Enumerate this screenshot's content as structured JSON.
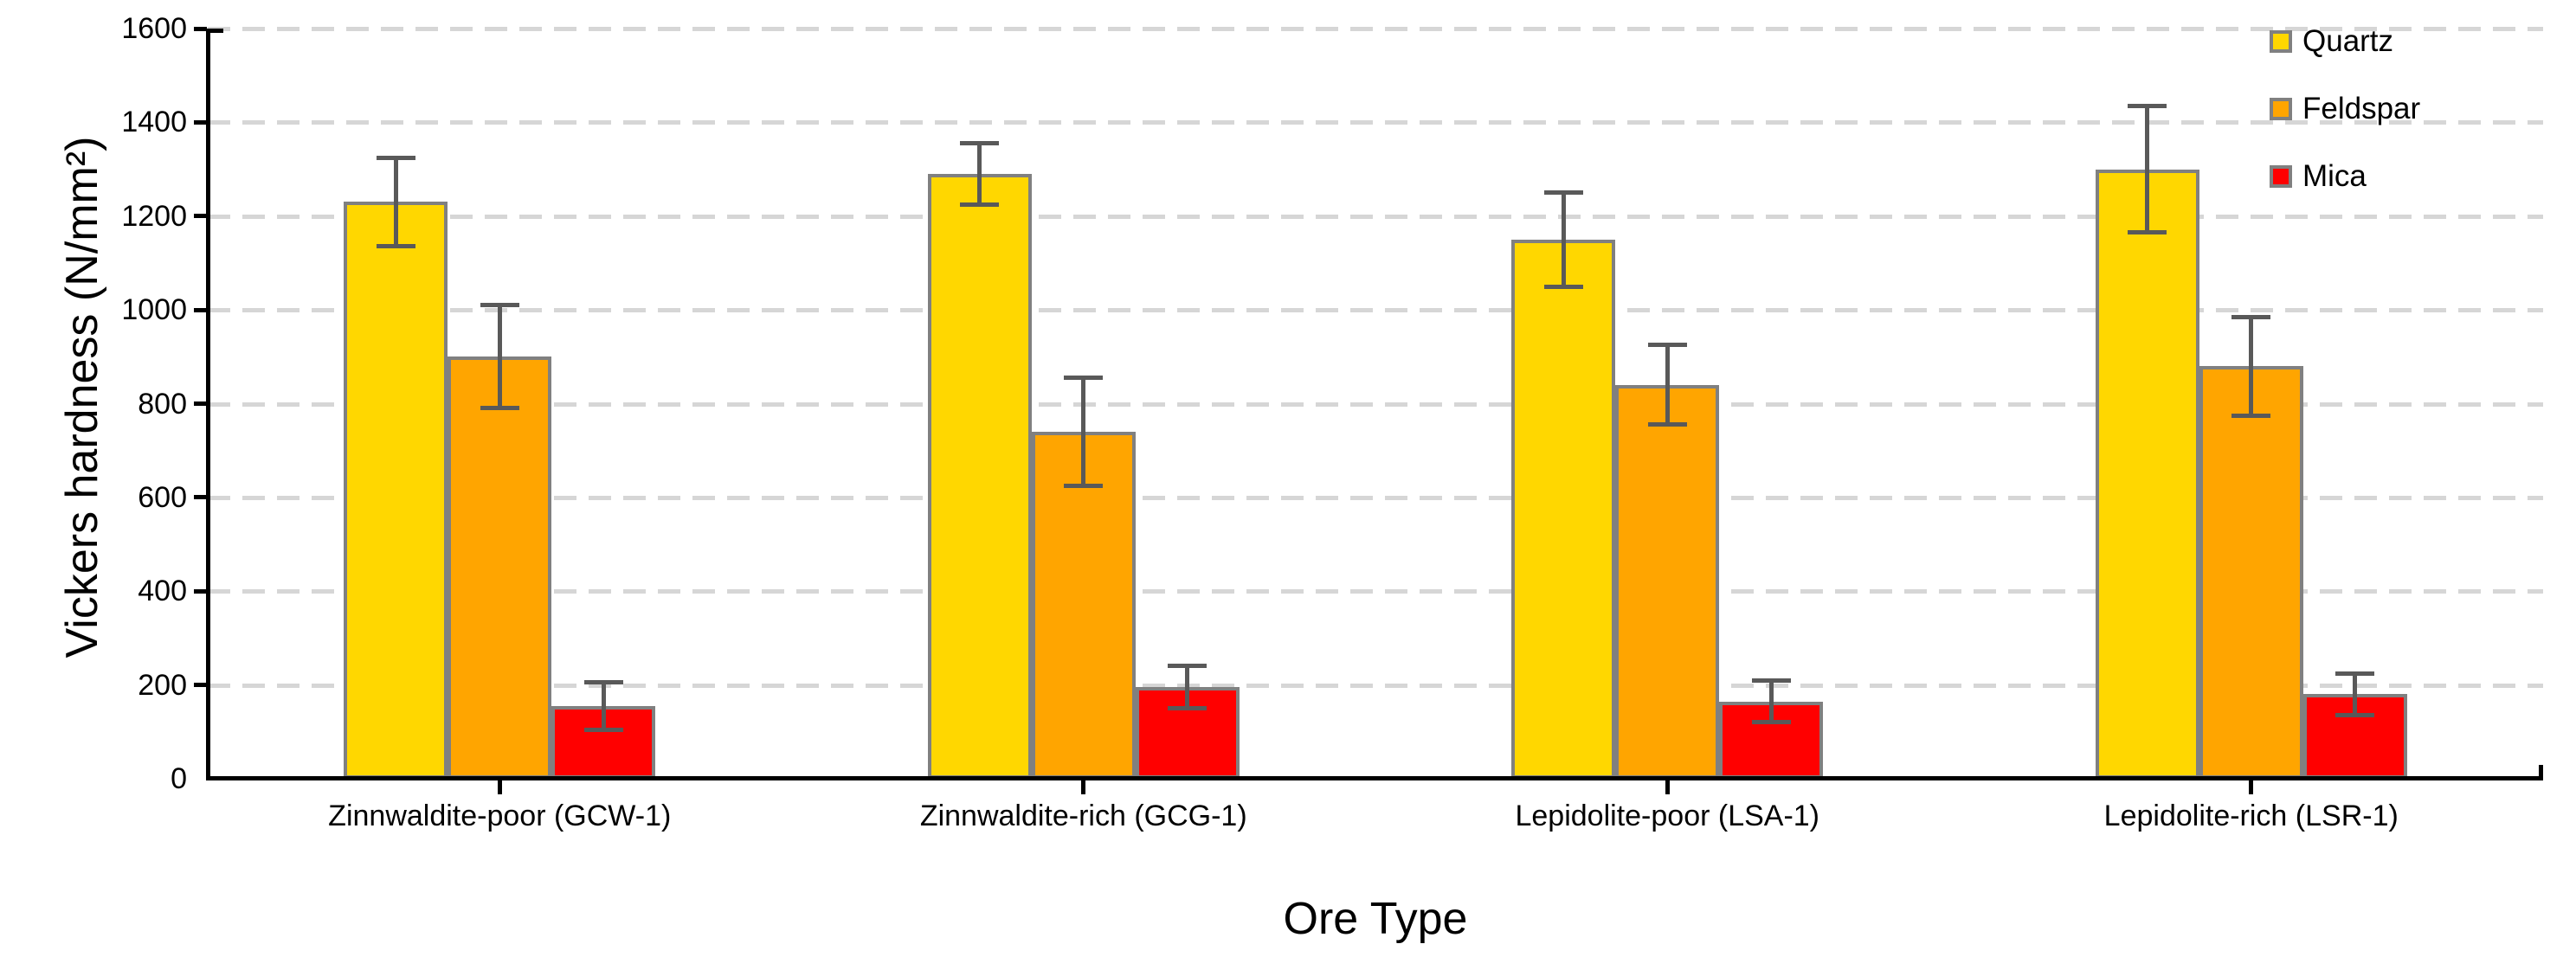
{
  "chart_data": {
    "type": "bar",
    "title": "",
    "xlabel": "Ore Type",
    "ylabel": "Vickers hardness (N/mm²)",
    "categories": [
      "Zinnwaldite-poor (GCW-1)",
      "Zinnwaldite-rich (GCG-1)",
      "Lepidolite-poor (LSA-1)",
      "Lepidolite-rich (LSR-1)"
    ],
    "series": [
      {
        "name": "Quartz",
        "color": "#FFD700",
        "values": [
          1230,
          1290,
          1150,
          1300
        ],
        "errors": [
          95,
          65,
          100,
          135
        ]
      },
      {
        "name": "Feldspar",
        "color": "#FFA500",
        "values": [
          900,
          740,
          840,
          880
        ],
        "errors": [
          110,
          115,
          85,
          105
        ]
      },
      {
        "name": "Mica",
        "color": "#FF0000",
        "values": [
          155,
          195,
          165,
          180
        ],
        "errors": [
          50,
          45,
          45,
          45
        ]
      }
    ],
    "ylim": [
      0,
      1600
    ],
    "ytick_step": 200,
    "grid": "horizontal-dashed",
    "legend_position": "top-right",
    "error_bars": true,
    "colors": {
      "bar_border": "#808080",
      "error_bar": "#595959",
      "gridline": "#D6D6D6",
      "axis": "#000000",
      "text": "#000000",
      "background": "#FFFFFF"
    }
  }
}
